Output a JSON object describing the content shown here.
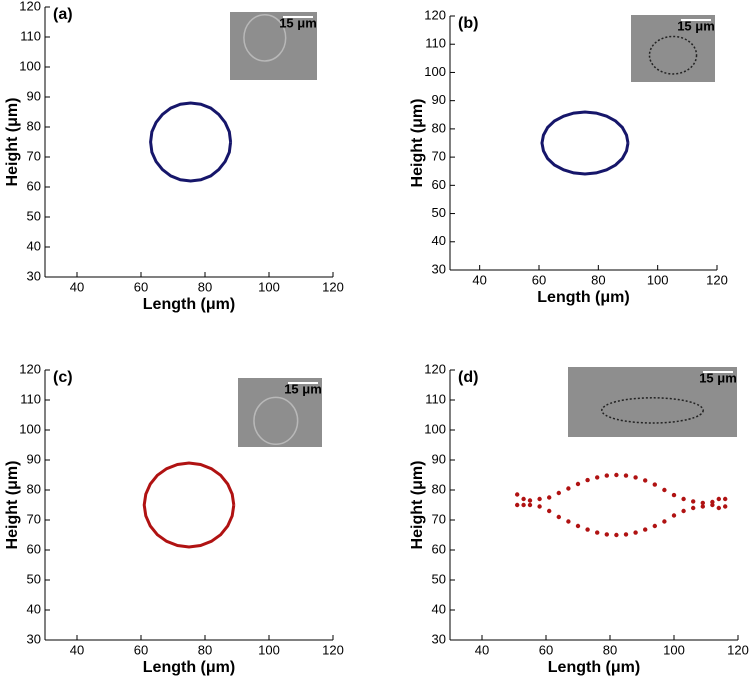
{
  "chart_data": [
    {
      "type": "line",
      "panel_label": "(a)",
      "inset_label": "15 μm",
      "xlabel": "Length (μm)",
      "ylabel": "Height (μm)",
      "xlim": [
        30,
        120
      ],
      "ylim": [
        30,
        120
      ],
      "xticks": [
        40,
        60,
        80,
        100,
        120
      ],
      "yticks": [
        30,
        40,
        50,
        60,
        70,
        80,
        90,
        100,
        110,
        120
      ],
      "series": [
        {
          "color": "#16166a",
          "x": [
            88.0,
            87.6,
            86.3,
            84.3,
            81.8,
            78.7,
            75.5,
            72.3,
            69.3,
            66.7,
            64.7,
            63.4,
            63.0,
            63.4,
            64.7,
            66.7,
            69.3,
            72.3,
            75.5,
            78.7,
            81.8,
            84.3,
            86.3,
            87.6,
            88.0
          ],
          "values": [
            75.0,
            78.4,
            81.5,
            84.2,
            86.3,
            87.6,
            88.0,
            87.6,
            86.3,
            84.2,
            81.5,
            78.4,
            75.0,
            71.6,
            68.5,
            65.8,
            63.7,
            62.4,
            62.0,
            62.4,
            63.7,
            65.8,
            68.5,
            71.6,
            75.0
          ]
        }
      ]
    },
    {
      "type": "line",
      "panel_label": "(b)",
      "inset_label": "15 μm",
      "xlabel": "Length (μm)",
      "ylabel": "Height (μm)",
      "xlim": [
        30,
        120
      ],
      "ylim": [
        30,
        120
      ],
      "xticks": [
        40,
        60,
        80,
        100,
        120
      ],
      "yticks": [
        30,
        40,
        50,
        60,
        70,
        80,
        90,
        100,
        110,
        120
      ],
      "series": [
        {
          "color": "#16166a",
          "x": [
            90.0,
            89.5,
            88.1,
            85.8,
            82.8,
            79.3,
            75.5,
            71.7,
            68.3,
            65.2,
            62.9,
            61.5,
            61.0,
            61.5,
            62.9,
            65.2,
            68.3,
            71.7,
            75.5,
            79.3,
            82.8,
            85.8,
            88.1,
            89.5,
            90.0
          ],
          "values": [
            75.0,
            77.8,
            80.5,
            82.8,
            84.5,
            85.6,
            86.0,
            85.6,
            84.5,
            82.8,
            80.5,
            77.8,
            75.0,
            72.2,
            69.5,
            67.2,
            65.5,
            64.4,
            64.0,
            64.4,
            65.5,
            67.2,
            69.5,
            72.2,
            75.0
          ]
        }
      ]
    },
    {
      "type": "line",
      "panel_label": "(c)",
      "inset_label": "15 μm",
      "xlabel": "Length (μm)",
      "ylabel": "Height (μm)",
      "xlim": [
        30,
        120
      ],
      "ylim": [
        30,
        120
      ],
      "xticks": [
        40,
        60,
        80,
        100,
        120
      ],
      "yticks": [
        30,
        40,
        50,
        60,
        70,
        80,
        90,
        100,
        110,
        120
      ],
      "series": [
        {
          "color": "#b01212",
          "x": [
            89.0,
            88.5,
            87.1,
            84.9,
            82.0,
            78.6,
            75.0,
            71.4,
            68.0,
            65.1,
            62.9,
            61.5,
            61.0,
            61.5,
            62.9,
            65.1,
            68.0,
            71.4,
            75.0,
            78.6,
            82.0,
            84.9,
            87.1,
            88.5,
            89.0
          ],
          "values": [
            75.0,
            78.6,
            82.0,
            84.9,
            87.1,
            88.5,
            89.0,
            88.5,
            87.1,
            84.9,
            82.0,
            78.6,
            75.0,
            71.4,
            68.0,
            65.1,
            62.9,
            61.5,
            61.0,
            61.5,
            62.9,
            65.1,
            68.0,
            71.4,
            75.0
          ]
        }
      ]
    },
    {
      "type": "scatter",
      "panel_label": "(d)",
      "inset_label": "15 μm",
      "xlabel": "Length (μm)",
      "ylabel": "Height (μm)",
      "xlim": [
        30,
        120
      ],
      "ylim": [
        30,
        120
      ],
      "xticks": [
        40,
        60,
        80,
        100,
        120
      ],
      "yticks": [
        30,
        40,
        50,
        60,
        70,
        80,
        90,
        100,
        110,
        120
      ],
      "series": [
        {
          "color": "#b01212",
          "x": [
            51,
            53,
            55,
            58,
            61,
            64,
            67,
            70,
            73,
            76,
            79,
            82,
            85,
            88,
            91,
            94,
            97,
            100,
            103,
            106,
            109,
            112,
            114,
            116
          ],
          "values": [
            78.5,
            77,
            76.5,
            77,
            77.5,
            79,
            80.5,
            82,
            83.3,
            84.2,
            84.8,
            85,
            84.8,
            84.2,
            83.2,
            81.8,
            80,
            78.3,
            77,
            76.2,
            75.7,
            76,
            77,
            74.5
          ]
        },
        {
          "color": "#b01212",
          "x": [
            51,
            53,
            55,
            58,
            61,
            64,
            67,
            70,
            73,
            76,
            79,
            82,
            85,
            88,
            91,
            94,
            97,
            100,
            103,
            106,
            109,
            112,
            114,
            116
          ],
          "values": [
            75,
            75,
            75,
            74.5,
            73,
            71,
            69.5,
            68,
            66.8,
            65.8,
            65.2,
            65,
            65.2,
            65.8,
            66.8,
            68,
            69.5,
            71.5,
            73,
            74,
            74.5,
            75,
            74,
            77
          ]
        }
      ]
    }
  ]
}
